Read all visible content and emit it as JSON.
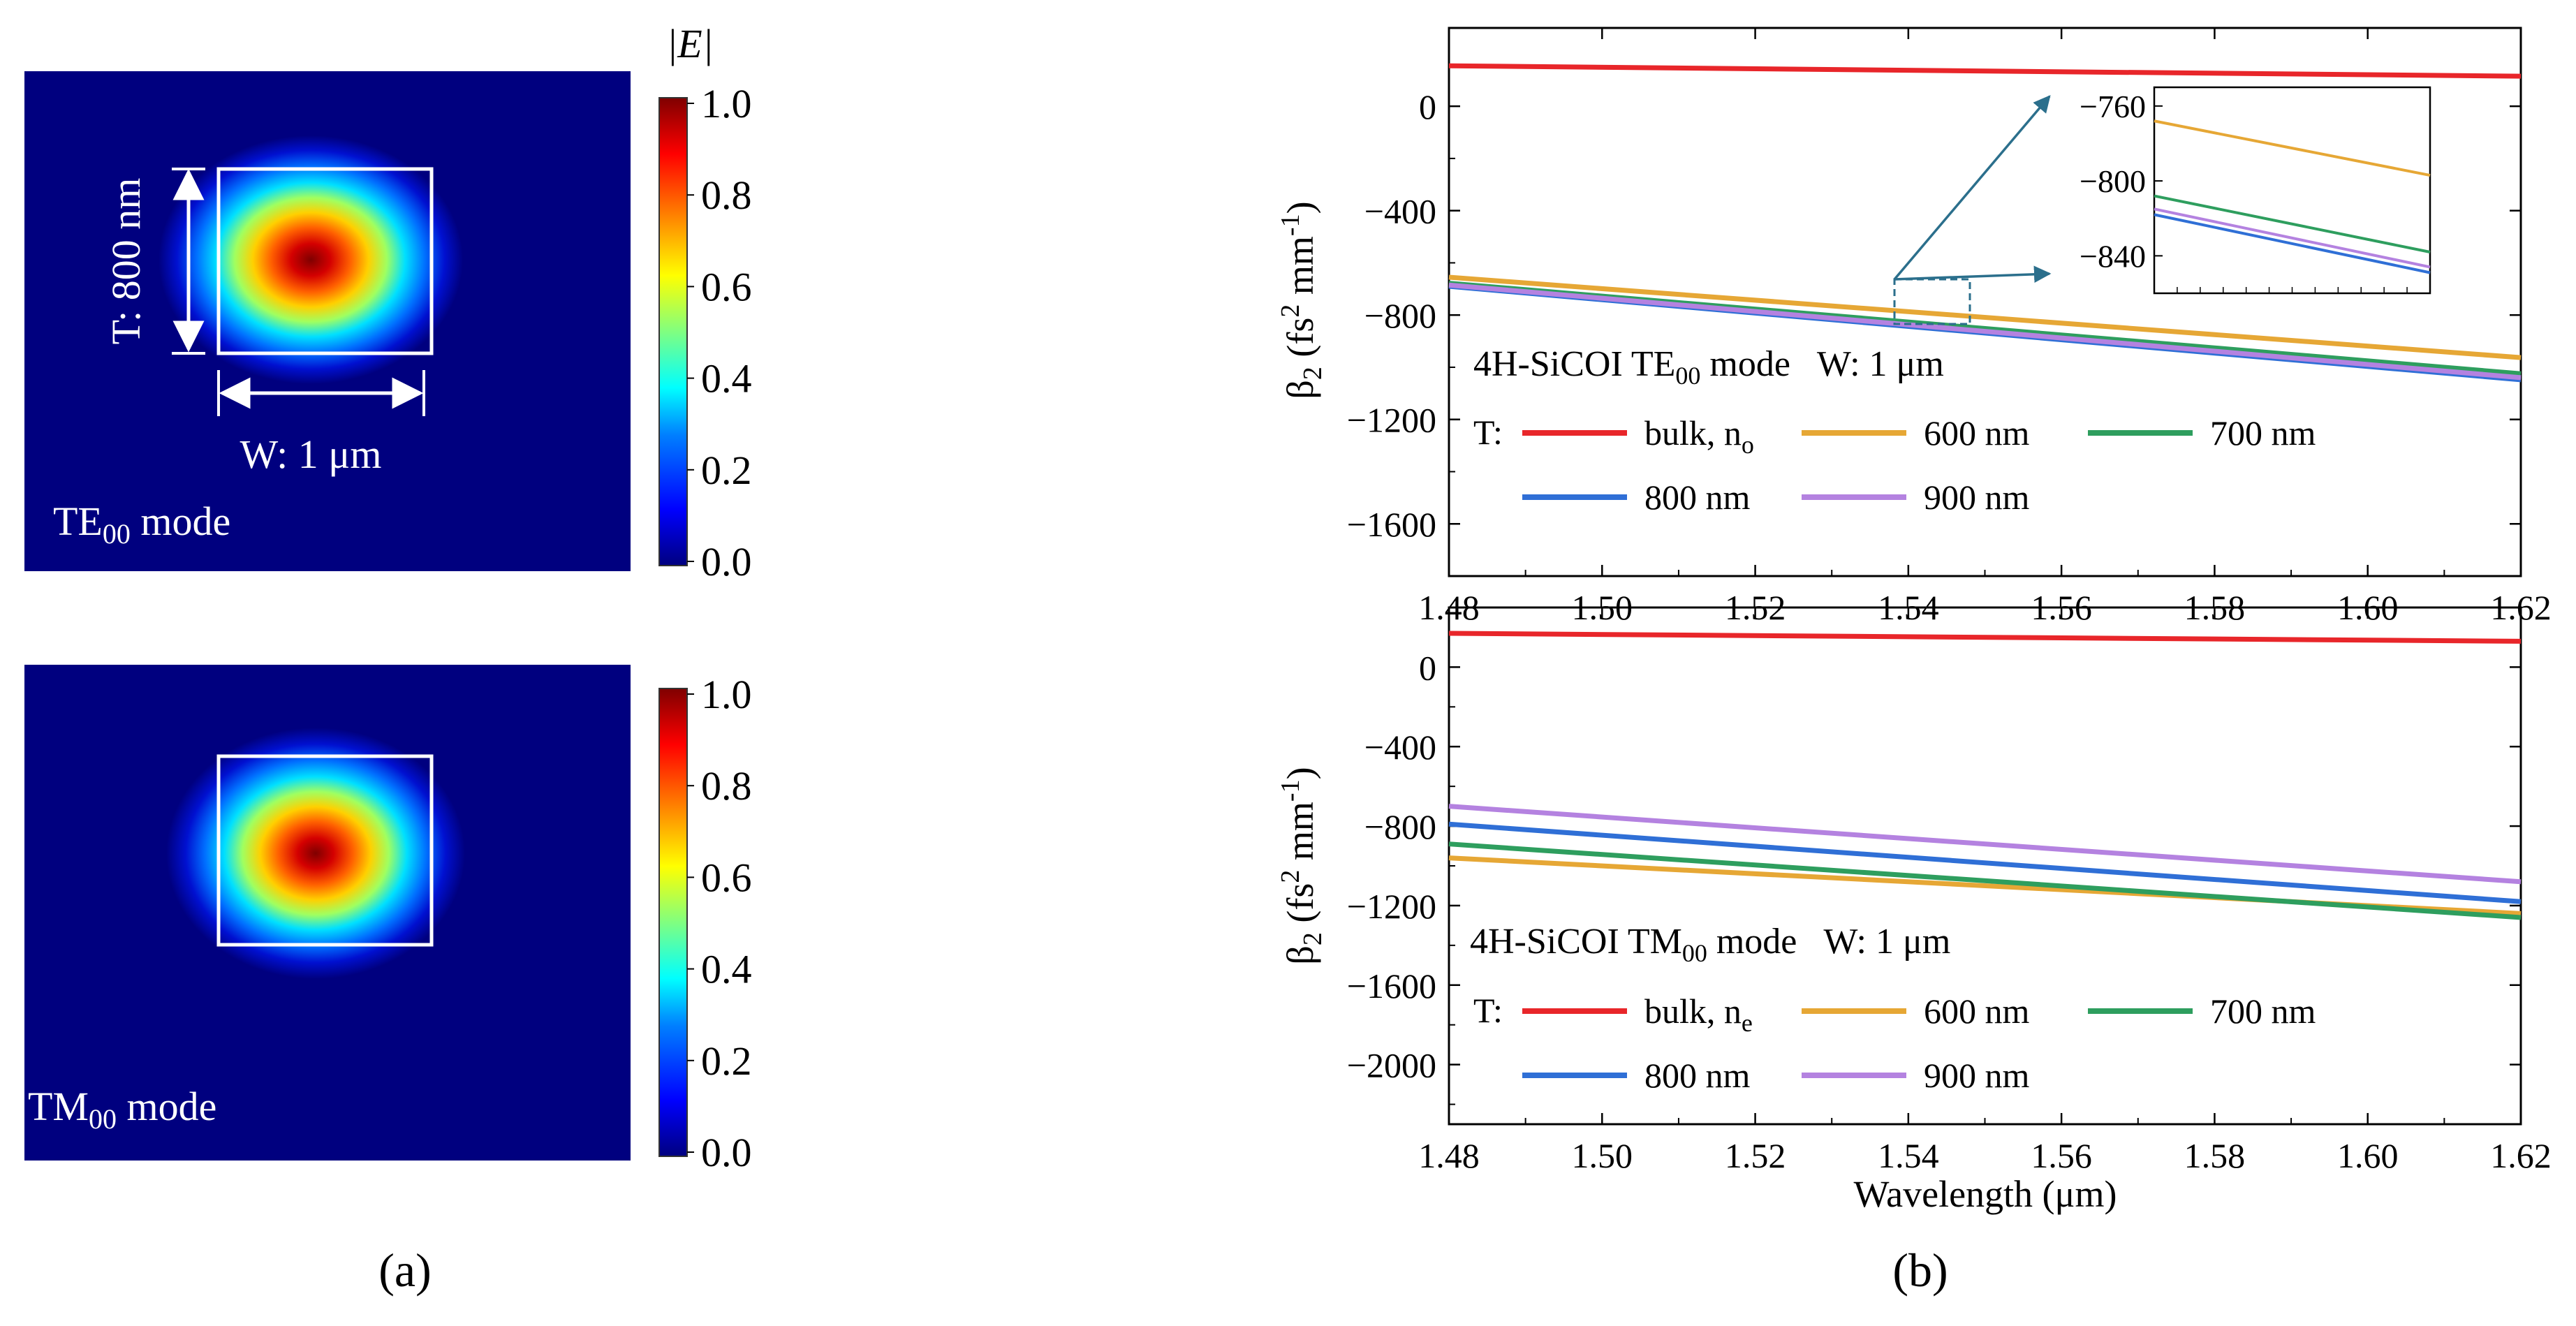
{
  "colormap": {
    "label": "|E|",
    "ticks": [
      "1.0",
      "0.8",
      "0.6",
      "0.4",
      "0.2",
      "0.0"
    ],
    "stops": [
      "#00007f",
      "#0000ff",
      "#0080ff",
      "#00ffff",
      "#80ff80",
      "#ffff00",
      "#ff8000",
      "#ff0000",
      "#7f0000"
    ]
  },
  "panel_a": {
    "label": "(a)",
    "te": {
      "mode_label": "TE",
      "mode_sub": "00",
      "mode_suffix": " mode",
      "thickness_label": "T: 800 nm",
      "width_label": "W: 1 μm"
    },
    "tm": {
      "mode_label": "TM",
      "mode_sub": "00",
      "mode_suffix": " mode"
    }
  },
  "panel_b": {
    "label": "(b)"
  },
  "chart_data": [
    {
      "type": "line",
      "title": "4H-SiCOI TE00 mode W: 1 μm",
      "title_parts": {
        "prefix": "4H-SiCOI TE",
        "sub": "00",
        "suffix": " mode",
        "width": "W: 1 μm"
      },
      "ylabel_parts": {
        "beta": "β",
        "beta_sub": "2",
        "unit_a": " (fs",
        "sup2": "2",
        "unit_b": " mm",
        "sup_m1": "-1",
        "unit_c": ")"
      },
      "xlim": [
        1.48,
        1.62
      ],
      "ylim": [
        -1800,
        300
      ],
      "xticks": [
        "1.48",
        "1.50",
        "1.52",
        "1.54",
        "1.56",
        "1.58",
        "1.60",
        "1.62"
      ],
      "yticks": [
        "0",
        "-400",
        "-800",
        "-1200",
        "-1600"
      ],
      "legend_title": "T:",
      "series": [
        {
          "name": "bulk, no",
          "label_main": "bulk, n",
          "label_sub": "o",
          "color": "#e8262a",
          "x": [
            1.48,
            1.62
          ],
          "y": [
            155,
            115
          ]
        },
        {
          "name": "600 nm",
          "label_main": "600 nm",
          "label_sub": "",
          "color": "#e6a735",
          "x": [
            1.48,
            1.62
          ],
          "y": [
            -655,
            -963
          ]
        },
        {
          "name": "700 nm",
          "label_main": "700 nm",
          "label_sub": "",
          "color": "#2e9e5e",
          "x": [
            1.48,
            1.62
          ],
          "y": [
            -678,
            -1025
          ]
        },
        {
          "name": "800 nm",
          "label_main": "800 nm",
          "label_sub": "",
          "color": "#2f6fd6",
          "x": [
            1.48,
            1.62
          ],
          "y": [
            -690,
            -1048
          ]
        },
        {
          "name": "900 nm",
          "label_main": "900 nm",
          "label_sub": "",
          "color": "#b482e0",
          "x": [
            1.48,
            1.62
          ],
          "y": [
            -685,
            -1040
          ]
        }
      ],
      "inset": {
        "ylim": [
          -860,
          -750
        ],
        "yticks": [
          "-760",
          "-800",
          "-840"
        ],
        "series": [
          {
            "name": "600 nm",
            "color": "#e6a735",
            "y": [
              -768,
              -797
            ]
          },
          {
            "name": "700 nm",
            "color": "#2e9e5e",
            "y": [
              -808,
              -838
            ]
          },
          {
            "name": "800 nm",
            "color": "#2f6fd6",
            "y": [
              -818,
              -849
            ]
          },
          {
            "name": "900 nm",
            "color": "#b482e0",
            "y": [
              -815,
              -846
            ]
          }
        ]
      }
    },
    {
      "type": "line",
      "title": "4H-SiCOI TM00 mode W: 1 μm",
      "title_parts": {
        "prefix": "4H-SiCOI TM",
        "sub": "00",
        "suffix": " mode",
        "width": "W: 1 μm"
      },
      "ylabel_parts": {
        "beta": "β",
        "beta_sub": "2",
        "unit_a": " (fs",
        "sup2": "2",
        "unit_b": " mm",
        "sup_m1": "-1",
        "unit_c": ")"
      },
      "xlabel": "Wavelength (μm)",
      "xlim": [
        1.48,
        1.62
      ],
      "ylim": [
        -2300,
        300
      ],
      "xticks": [
        "1.48",
        "1.50",
        "1.52",
        "1.54",
        "1.56",
        "1.58",
        "1.60",
        "1.62"
      ],
      "yticks": [
        "0",
        "-400",
        "-800",
        "-1200",
        "-1600",
        "-2000"
      ],
      "legend_title": "T:",
      "series": [
        {
          "name": "bulk, ne",
          "label_main": "bulk, n",
          "label_sub": "e",
          "color": "#e8262a",
          "x": [
            1.48,
            1.62
          ],
          "y": [
            170,
            130
          ]
        },
        {
          "name": "600 nm",
          "label_main": "600 nm",
          "label_sub": "",
          "color": "#e6a735",
          "x": [
            1.48,
            1.62
          ],
          "y": [
            -960,
            -1240
          ]
        },
        {
          "name": "700 nm",
          "label_main": "700 nm",
          "label_sub": "",
          "color": "#2e9e5e",
          "x": [
            1.48,
            1.62
          ],
          "y": [
            -890,
            -1260
          ]
        },
        {
          "name": "800 nm",
          "label_main": "800 nm",
          "label_sub": "",
          "color": "#2f6fd6",
          "x": [
            1.48,
            1.62
          ],
          "y": [
            -790,
            -1180
          ]
        },
        {
          "name": "900 nm",
          "label_main": "900 nm",
          "label_sub": "",
          "color": "#b482e0",
          "x": [
            1.48,
            1.62
          ],
          "y": [
            -700,
            -1080
          ]
        }
      ]
    }
  ]
}
